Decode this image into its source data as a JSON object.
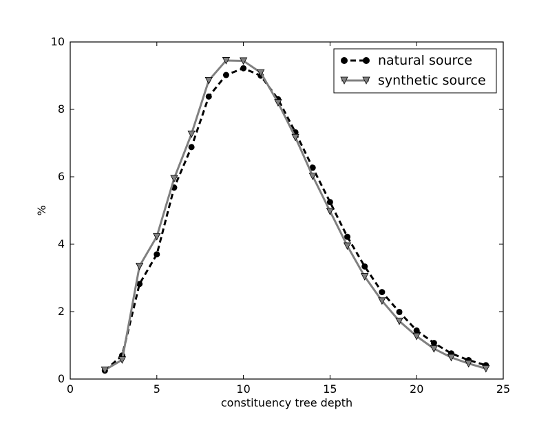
{
  "chart_data": {
    "type": "line",
    "title": "",
    "xlabel": "constituency tree depth",
    "ylabel": "%",
    "xlim": [
      0,
      25
    ],
    "ylim": [
      0,
      10
    ],
    "xticks": [
      "0",
      "5",
      "10",
      "15",
      "20",
      "25"
    ],
    "yticks": [
      "0",
      "2",
      "4",
      "6",
      "8",
      "10"
    ],
    "grid": false,
    "legend_position": "top-right",
    "x": [
      2,
      3,
      4,
      5,
      6,
      7,
      8,
      9,
      10,
      11,
      12,
      13,
      14,
      15,
      16,
      17,
      18,
      19,
      20,
      21,
      22,
      23,
      24
    ],
    "series": [
      {
        "name": "natural source",
        "color": "#000000",
        "line_style": "dashed",
        "marker": "circle",
        "values": [
          0.25,
          0.7,
          2.82,
          3.7,
          5.68,
          6.88,
          8.38,
          9.02,
          9.22,
          9.0,
          8.3,
          7.32,
          6.27,
          5.25,
          4.22,
          3.34,
          2.58,
          1.99,
          1.44,
          1.07,
          0.76,
          0.56,
          0.41
        ]
      },
      {
        "name": "synthetic source",
        "color": "#808080",
        "line_style": "solid",
        "marker": "triangle-down",
        "values": [
          0.27,
          0.57,
          3.35,
          4.23,
          5.95,
          7.27,
          8.86,
          9.45,
          9.44,
          9.09,
          8.2,
          7.17,
          6.02,
          4.98,
          3.95,
          3.04,
          2.32,
          1.72,
          1.27,
          0.9,
          0.64,
          0.46,
          0.31
        ]
      }
    ]
  }
}
